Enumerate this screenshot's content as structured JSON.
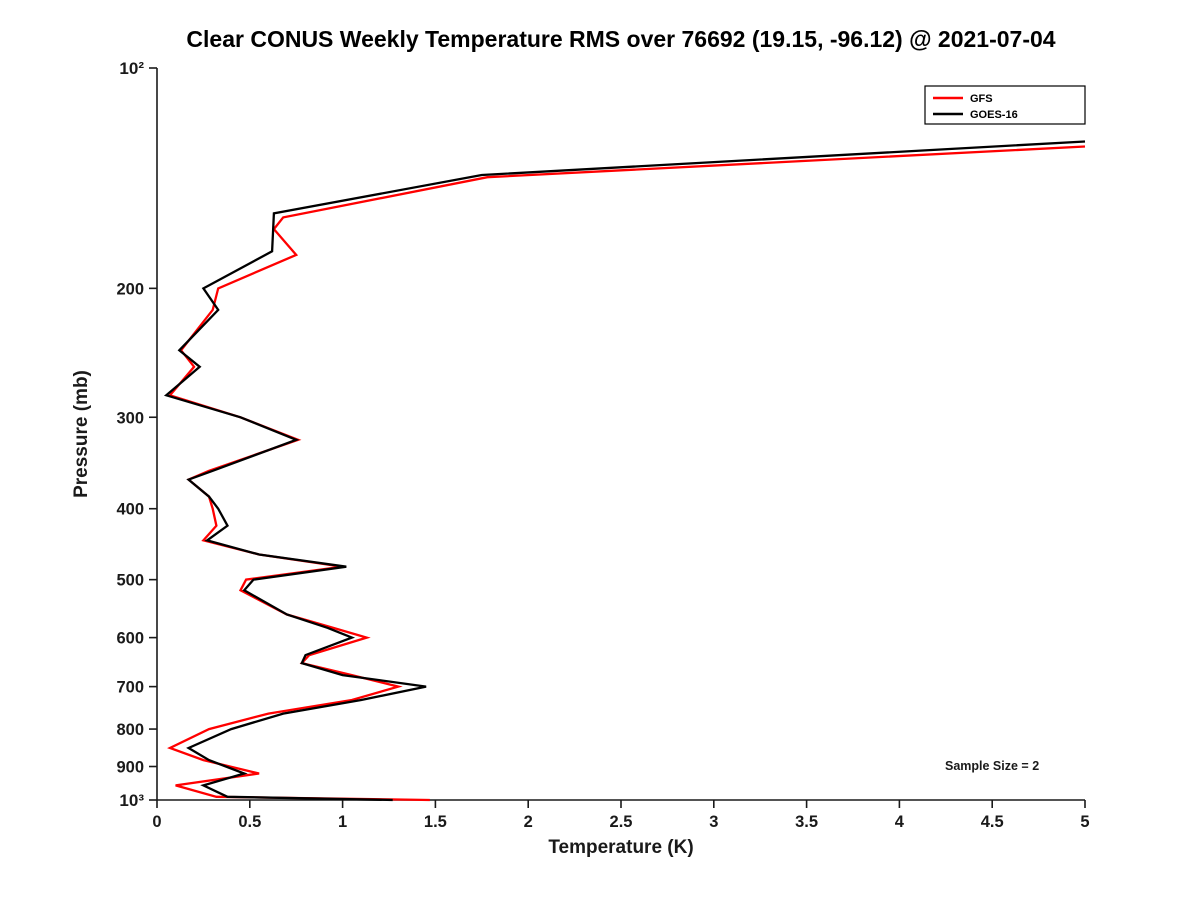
{
  "chart_data": {
    "type": "line",
    "title": "Clear CONUS Weekly Temperature RMS over 76692 (19.15, -96.12) @ 2021-07-04",
    "xlabel": "Temperature (K)",
    "ylabel": "Pressure (mb)",
    "xlim": [
      0,
      5
    ],
    "ylim": [
      100,
      1000
    ],
    "y_scale": "log10",
    "y_inverted": true,
    "grid": false,
    "legend_position": "top-right",
    "annotation": "Sample Size = 2",
    "x_ticks": [
      {
        "value": 0,
        "label": "0"
      },
      {
        "value": 0.5,
        "label": "0.5"
      },
      {
        "value": 1,
        "label": "1"
      },
      {
        "value": 1.5,
        "label": "1.5"
      },
      {
        "value": 2,
        "label": "2"
      },
      {
        "value": 2.5,
        "label": "2.5"
      },
      {
        "value": 3,
        "label": "3"
      },
      {
        "value": 3.5,
        "label": "3.5"
      },
      {
        "value": 4,
        "label": "4"
      },
      {
        "value": 4.5,
        "label": "4.5"
      },
      {
        "value": 5,
        "label": "5"
      }
    ],
    "y_ticks": [
      {
        "value": 100,
        "label": "10²",
        "exponent": true
      },
      {
        "value": 200,
        "label": "200"
      },
      {
        "value": 300,
        "label": "300"
      },
      {
        "value": 400,
        "label": "400"
      },
      {
        "value": 500,
        "label": "500"
      },
      {
        "value": 600,
        "label": "600"
      },
      {
        "value": 700,
        "label": "700"
      },
      {
        "value": 800,
        "label": "800"
      },
      {
        "value": 900,
        "label": "900"
      },
      {
        "value": 1000,
        "label": "10³",
        "exponent": true
      }
    ],
    "series": [
      {
        "name": "GFS",
        "color": "#ff0000",
        "points": [
          [
            128,
            5.0
          ],
          [
            141,
            1.78
          ],
          [
            160,
            0.68
          ],
          [
            166,
            0.63
          ],
          [
            180,
            0.75
          ],
          [
            200,
            0.33
          ],
          [
            214,
            0.3
          ],
          [
            243,
            0.13
          ],
          [
            256,
            0.2
          ],
          [
            280,
            0.07
          ],
          [
            300,
            0.45
          ],
          [
            322,
            0.76
          ],
          [
            355,
            0.28
          ],
          [
            365,
            0.17
          ],
          [
            385,
            0.28
          ],
          [
            400,
            0.3
          ],
          [
            422,
            0.32
          ],
          [
            442,
            0.25
          ],
          [
            462,
            0.55
          ],
          [
            480,
            1.0
          ],
          [
            500,
            0.48
          ],
          [
            517,
            0.45
          ],
          [
            558,
            0.7
          ],
          [
            582,
            0.95
          ],
          [
            600,
            1.13
          ],
          [
            634,
            0.82
          ],
          [
            650,
            0.78
          ],
          [
            675,
            1.05
          ],
          [
            700,
            1.3
          ],
          [
            730,
            1.05
          ],
          [
            762,
            0.6
          ],
          [
            800,
            0.28
          ],
          [
            849,
            0.07
          ],
          [
            882,
            0.25
          ],
          [
            920,
            0.55
          ],
          [
            955,
            0.1
          ],
          [
            990,
            0.32
          ],
          [
            1000,
            1.47
          ]
        ]
      },
      {
        "name": "GOES-16",
        "color": "#000000",
        "points": [
          [
            126,
            5.0
          ],
          [
            140,
            1.75
          ],
          [
            158,
            0.63
          ],
          [
            178,
            0.62
          ],
          [
            200,
            0.25
          ],
          [
            214,
            0.33
          ],
          [
            243,
            0.12
          ],
          [
            256,
            0.23
          ],
          [
            280,
            0.05
          ],
          [
            300,
            0.45
          ],
          [
            322,
            0.75
          ],
          [
            355,
            0.3
          ],
          [
            365,
            0.17
          ],
          [
            385,
            0.28
          ],
          [
            400,
            0.33
          ],
          [
            422,
            0.38
          ],
          [
            442,
            0.27
          ],
          [
            462,
            0.55
          ],
          [
            480,
            1.02
          ],
          [
            500,
            0.52
          ],
          [
            517,
            0.47
          ],
          [
            558,
            0.7
          ],
          [
            582,
            0.92
          ],
          [
            600,
            1.05
          ],
          [
            634,
            0.8
          ],
          [
            650,
            0.78
          ],
          [
            675,
            1.0
          ],
          [
            700,
            1.45
          ],
          [
            730,
            1.1
          ],
          [
            762,
            0.68
          ],
          [
            800,
            0.4
          ],
          [
            849,
            0.17
          ],
          [
            882,
            0.28
          ],
          [
            920,
            0.47
          ],
          [
            955,
            0.25
          ],
          [
            990,
            0.38
          ],
          [
            1000,
            1.27
          ]
        ]
      }
    ]
  }
}
